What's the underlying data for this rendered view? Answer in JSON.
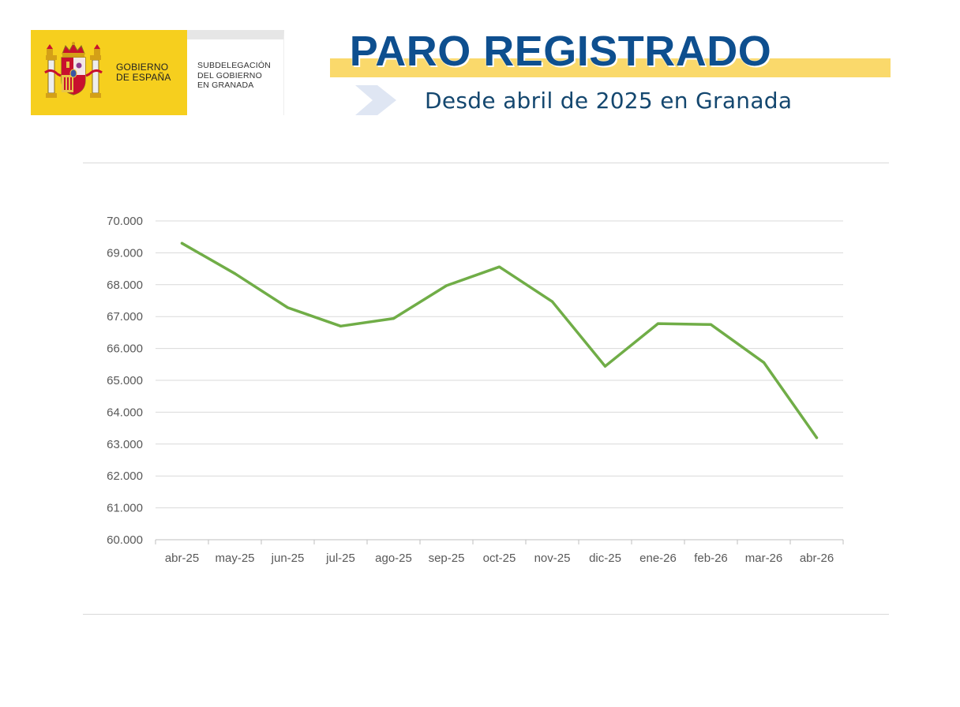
{
  "header": {
    "government": {
      "line1": "GOBIERNO",
      "line2": "DE ESPAÑA"
    },
    "subdelegacion": {
      "line1": "SUBDELEGACIÓN",
      "line2": "DEL GOBIERNO",
      "line3": "EN GRANADA"
    },
    "title": "PARO REGISTRADO",
    "subtitle": "Desde abril de 2025 en Granada",
    "icons": [
      "coat-of-arms-icon",
      "chevron-right-icon"
    ],
    "colors": {
      "logo_yellow": "#f6cf1e",
      "title_blue": "#0e4f8f",
      "title_bar": "#fad96b",
      "subtitle_blue": "#14476f"
    }
  },
  "chart_data": {
    "type": "line",
    "categories": [
      "abr-25",
      "may-25",
      "jun-25",
      "jul-25",
      "ago-25",
      "sep-25",
      "oct-25",
      "nov-25",
      "dic-25",
      "ene-26",
      "feb-26",
      "mar-26",
      "abr-26"
    ],
    "series": [
      {
        "values": [
          69300,
          68350,
          67280,
          66700,
          66940,
          67970,
          68560,
          67470,
          65440,
          66780,
          66750,
          65560,
          63200
        ],
        "color": "#70ad47"
      }
    ],
    "ylim": [
      60000,
      70000
    ],
    "yticks": [
      60000,
      61000,
      62000,
      63000,
      64000,
      65000,
      66000,
      67000,
      68000,
      69000,
      70000
    ],
    "ytick_labels": [
      "60.000",
      "61.000",
      "62.000",
      "63.000",
      "64.000",
      "65.000",
      "66.000",
      "67.000",
      "68.000",
      "69.000",
      "70.000"
    ],
    "grid": true,
    "legend": false
  }
}
